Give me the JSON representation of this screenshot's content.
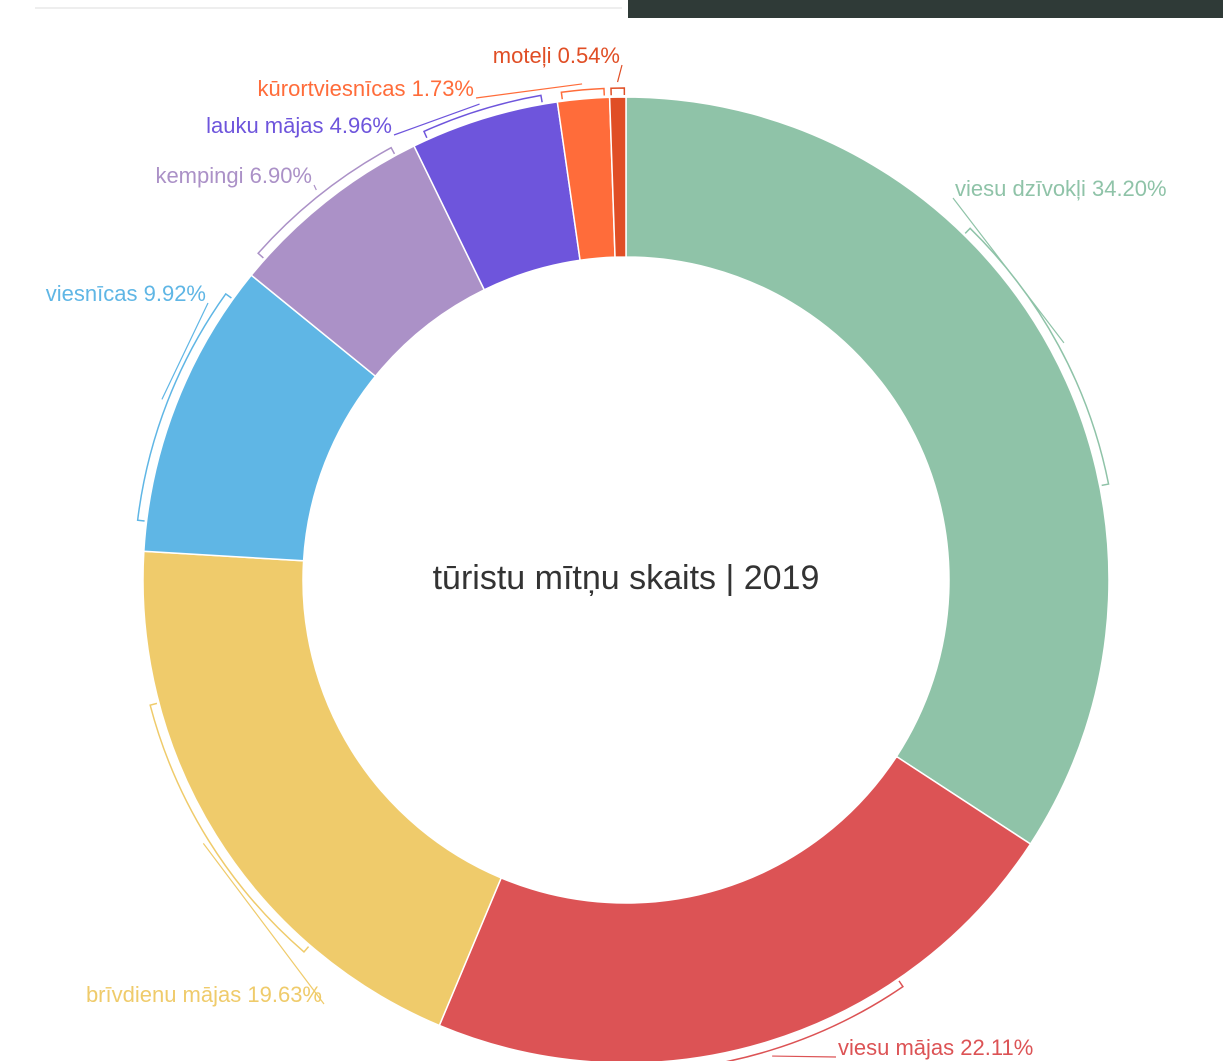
{
  "chart_data": {
    "type": "donut",
    "title": "tūristu mītņu skaits | 2019",
    "categories": [
      "viesu dzīvokļi",
      "viesu mājas",
      "brīvdienu mājas",
      "viesnīcas",
      "kempingi",
      "lauku mājas",
      "kūrortviesnīcas",
      "moteļi"
    ],
    "values": [
      34.2,
      22.11,
      19.63,
      9.92,
      6.9,
      4.96,
      1.73,
      0.54
    ],
    "value_labels": [
      "34.20%",
      "22.11%",
      "19.63%",
      "9.92%",
      "6.90%",
      "4.96%",
      "1.73%",
      "0.54%"
    ],
    "colors": [
      "#8fc3a8",
      "#dc5355",
      "#efcb6b",
      "#5fb6e5",
      "#ab91c7",
      "#6e55dc",
      "#ff6c3a",
      "#e04e25"
    ]
  }
}
